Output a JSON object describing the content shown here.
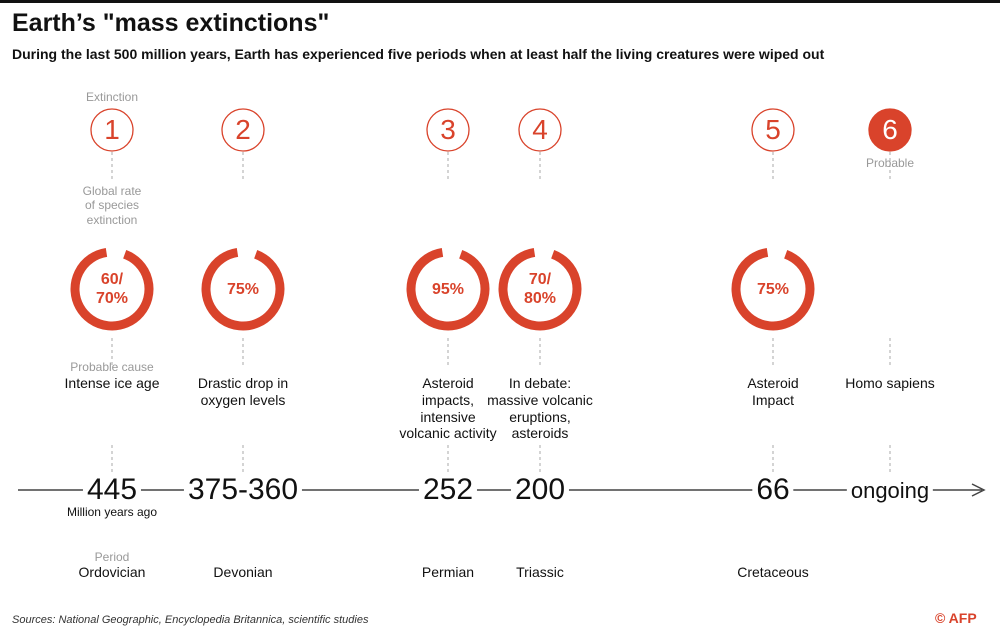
{
  "header": {
    "title": "Earth’s \"mass extinctions\"",
    "subtitle": "During the last 500 million years, Earth has experienced five periods when at least half the living creatures were wiped out"
  },
  "labels": {
    "extinction": "Extinction",
    "global_rate": "Global rate\nof species\nextinction",
    "probable_cause": "Probable cause",
    "million_years_ago": "Million years ago",
    "period": "Period",
    "probable": "Probable"
  },
  "events": [
    {
      "number": "1",
      "rate": "60/\n70%",
      "cause": "Intense ice age",
      "date": "445",
      "period": "Ordovician"
    },
    {
      "number": "2",
      "rate": "75%",
      "cause": "Drastic drop in\noxygen levels",
      "date": "375-360",
      "period": "Devonian"
    },
    {
      "number": "3",
      "rate": "95%",
      "cause": "Asteroid\nimpacts,\nintensive\nvolcanic activity",
      "date": "252",
      "period": "Permian"
    },
    {
      "number": "4",
      "rate": "70/\n80%",
      "cause": "In debate:\nmassive volcanic\neruptions,\nasteroids",
      "date": "200",
      "period": "Triassic"
    },
    {
      "number": "5",
      "rate": "75%",
      "cause": "Asteroid\nImpact",
      "date": "66",
      "period": "Cretaceous"
    },
    {
      "number": "6",
      "cause": "Homo sapiens",
      "date": "ongoing"
    }
  ],
  "footer": {
    "sources": "Sources: National Geographic, Encyclopedia Britannica, scientific studies",
    "credit": "© AFP"
  }
}
